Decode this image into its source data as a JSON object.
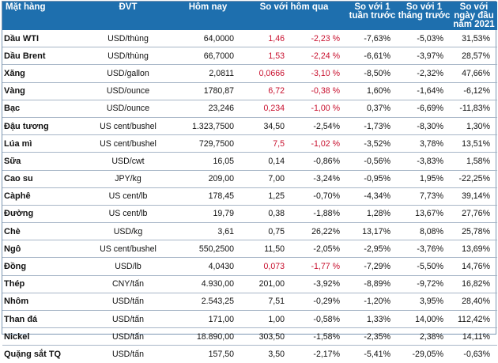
{
  "header": {
    "item": "Mặt hàng",
    "unit": "ĐVT",
    "today": "Hôm nay",
    "vs_yesterday": "So với hôm qua",
    "vs_1week": "So với 1 tuần trước",
    "vs_1month": "So với 1 tháng trước",
    "vs_ytd": "So với ngày đầu năm 2021"
  },
  "colors": {
    "header_bg": "#1e6fae",
    "header_text": "#ffffff",
    "negative": "#c8102e",
    "row_border": "#a7b6c7"
  },
  "rows": [
    {
      "name": "Dầu WTI",
      "unit": "USD/thùng",
      "today": "64,0000",
      "chg": "1,46",
      "pct": "-2,23 %",
      "w1": "-7,63%",
      "m1": "-5,03%",
      "ytd": "31,53%",
      "red": true
    },
    {
      "name": "Dầu Brent",
      "unit": "USD/thùng",
      "today": "66,7000",
      "chg": "1,53",
      "pct": "-2,24 %",
      "w1": "-6,61%",
      "m1": "-3,97%",
      "ytd": "28,57%",
      "red": true
    },
    {
      "name": "Xăng",
      "unit": "USD/gallon",
      "today": "2,0811",
      "chg": "0,0666",
      "pct": "-3,10 %",
      "w1": "-8,50%",
      "m1": "-2,32%",
      "ytd": "47,66%",
      "red": true
    },
    {
      "name": "Vàng",
      "unit": "USD/ounce",
      "today": "1780,87",
      "chg": "6,72",
      "pct": "-0,38 %",
      "w1": "1,60%",
      "m1": "-1,64%",
      "ytd": "-6,12%",
      "red": true
    },
    {
      "name": "Bạc",
      "unit": "USD/ounce",
      "today": "23,246",
      "chg": "0,234",
      "pct": "-1,00 %",
      "w1": "0,37%",
      "m1": "-6,69%",
      "ytd": "-11,83%",
      "red": true
    },
    {
      "name": "Đậu tương",
      "unit": "US cent/bushel",
      "today": "1.323,7500",
      "chg": "34,50",
      "pct": "-2,54%",
      "w1": "-1,73%",
      "m1": "-8,30%",
      "ytd": "1,30%",
      "red": false
    },
    {
      "name": "Lúa mì",
      "unit": "US cent/bushel",
      "today": "729,7500",
      "chg": "7,5",
      "pct": "-1,02 %",
      "w1": "-3,52%",
      "m1": "3,78%",
      "ytd": "13,51%",
      "red": true
    },
    {
      "name": "Sữa",
      "unit": "USD/cwt",
      "today": "16,05",
      "chg": "0,14",
      "pct": "-0,86%",
      "w1": "-0,56%",
      "m1": "-3,83%",
      "ytd": "1,58%",
      "red": false
    },
    {
      "name": "Cao su",
      "unit": "JPY/kg",
      "today": "209,00",
      "chg": "7,00",
      "pct": "-3,24%",
      "w1": "-0,95%",
      "m1": "1,95%",
      "ytd": "-22,25%",
      "red": false
    },
    {
      "name": "Càphê",
      "unit": "US cent/lb",
      "today": "178,45",
      "chg": "1,25",
      "pct": "-0,70%",
      "w1": "-4,34%",
      "m1": "7,73%",
      "ytd": "39,14%",
      "red": false
    },
    {
      "name": "Đường",
      "unit": "US cent/lb",
      "today": "19,79",
      "chg": "0,38",
      "pct": "-1,88%",
      "w1": "1,28%",
      "m1": "13,67%",
      "ytd": "27,76%",
      "red": false
    },
    {
      "name": "Chè",
      "unit": "USD/kg",
      "today": "3,61",
      "chg": "0,75",
      "pct": "26,22%",
      "w1": "13,17%",
      "m1": "8,08%",
      "ytd": "25,78%",
      "red": false
    },
    {
      "name": "Ngô",
      "unit": "US cent/bushel",
      "today": "550,2500",
      "chg": "11,50",
      "pct": "-2,05%",
      "w1": "-2,95%",
      "m1": "-3,76%",
      "ytd": "13,69%",
      "red": false
    },
    {
      "name": "Đồng",
      "unit": "USD/lb",
      "today": "4,0430",
      "chg": "0,073",
      "pct": "-1,77 %",
      "w1": "-7,29%",
      "m1": "-5,50%",
      "ytd": "14,76%",
      "red": true
    },
    {
      "name": "Thép",
      "unit": "CNY/tấn",
      "today": "4.930,00",
      "chg": "201,00",
      "pct": "-3,92%",
      "w1": "-8,89%",
      "m1": "-9,72%",
      "ytd": "16,82%",
      "red": false
    },
    {
      "name": "Nhôm",
      "unit": "USD/tấn",
      "today": "2.543,25",
      "chg": "7,51",
      "pct": "-0,29%",
      "w1": "-1,20%",
      "m1": "3,95%",
      "ytd": "28,40%",
      "red": false
    },
    {
      "name": "Than đá",
      "unit": "USD/tấn",
      "today": "171,00",
      "chg": "1,00",
      "pct": "-0,58%",
      "w1": "1,33%",
      "m1": "14,00%",
      "ytd": "112,42%",
      "red": false
    },
    {
      "name": "Nickel",
      "unit": "USD/tấn",
      "today": "18.890,00",
      "chg": "303,50",
      "pct": "-1,58%",
      "w1": "-2,35%",
      "m1": "2,38%",
      "ytd": "14,11%",
      "red": false
    },
    {
      "name": "Quặng sắt TQ",
      "unit": "USD/tấn",
      "today": "157,50",
      "chg": "3,50",
      "pct": "-2,17%",
      "w1": "-5,41%",
      "m1": "-29,05%",
      "ytd": "-0,63%",
      "red": false
    }
  ]
}
